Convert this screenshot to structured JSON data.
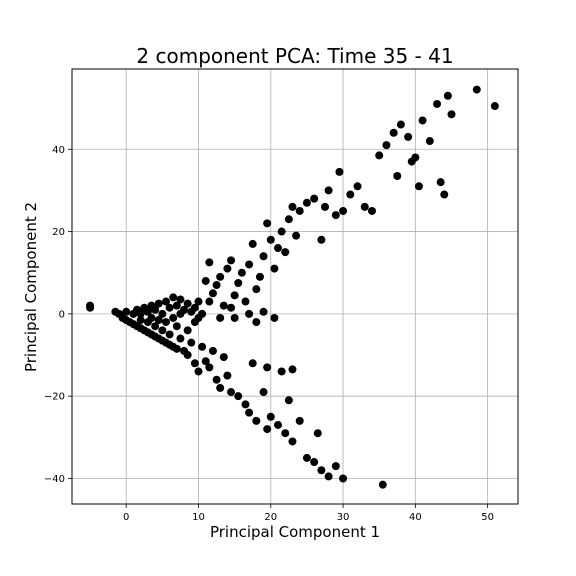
{
  "chart_data": {
    "type": "scatter",
    "title": "2 component PCA: Time 35 - 41",
    "xlabel": "Principal Component 1",
    "ylabel": "Principal Component 2",
    "xlim": [
      -7.5,
      54.2
    ],
    "ylim": [
      -46.2,
      59.5
    ],
    "xticks": [
      0,
      10,
      20,
      30,
      40,
      50
    ],
    "yticks": [
      -40,
      -20,
      0,
      20,
      40
    ],
    "xtick_labels": [
      "0",
      "10",
      "20",
      "30",
      "40",
      "50"
    ],
    "ytick_labels": [
      "−40",
      "−20",
      "0",
      "20",
      "40"
    ],
    "grid": true,
    "marker_color": "#000000",
    "series": [
      {
        "points": [
          [
            -5,
            2
          ],
          [
            -5,
            1.5
          ],
          [
            -1.5,
            0.5
          ],
          [
            -1,
            0
          ],
          [
            -0.5,
            -1
          ],
          [
            0,
            0.5
          ],
          [
            0,
            -1.5
          ],
          [
            0.5,
            -2
          ],
          [
            1,
            0
          ],
          [
            1,
            -2.5
          ],
          [
            1.5,
            1
          ],
          [
            1.5,
            -3
          ],
          [
            2,
            0
          ],
          [
            2,
            -1.5
          ],
          [
            2,
            -3.5
          ],
          [
            2.5,
            1.5
          ],
          [
            2.5,
            -4
          ],
          [
            3,
            0.5
          ],
          [
            3,
            -2
          ],
          [
            3,
            -4.5
          ],
          [
            3.5,
            2
          ],
          [
            3.5,
            -1
          ],
          [
            3.5,
            -5
          ],
          [
            4,
            1
          ],
          [
            4,
            -3
          ],
          [
            4,
            -5.5
          ],
          [
            4.5,
            2.5
          ],
          [
            4.5,
            -1.5
          ],
          [
            4.5,
            -6
          ],
          [
            5,
            0
          ],
          [
            5,
            -4
          ],
          [
            5,
            -6.5
          ],
          [
            5.5,
            3
          ],
          [
            5.5,
            -2
          ],
          [
            5.5,
            -7
          ],
          [
            6,
            1.5
          ],
          [
            6,
            -5
          ],
          [
            6,
            -7.5
          ],
          [
            6.5,
            4
          ],
          [
            6.5,
            -1
          ],
          [
            6.5,
            -8
          ],
          [
            7,
            2
          ],
          [
            7,
            -3
          ],
          [
            7,
            -8.5
          ],
          [
            7.5,
            3.5
          ],
          [
            7.5,
            0
          ],
          [
            7.5,
            -6
          ],
          [
            8,
            1
          ],
          [
            8,
            -9
          ],
          [
            8.5,
            2.5
          ],
          [
            8.5,
            -4
          ],
          [
            9,
            0.5
          ],
          [
            9,
            -7
          ],
          [
            9.5,
            1.5
          ],
          [
            9.5,
            -2
          ],
          [
            10,
            3
          ],
          [
            10,
            -1
          ],
          [
            10.5,
            0
          ],
          [
            11,
            8
          ],
          [
            11.5,
            12.5
          ],
          [
            12,
            5
          ],
          [
            12.5,
            7
          ],
          [
            13,
            9
          ],
          [
            13.5,
            2
          ],
          [
            14,
            11
          ],
          [
            14.5,
            13
          ],
          [
            15,
            4.5
          ],
          [
            15.5,
            7.5
          ],
          [
            16,
            10
          ],
          [
            16.5,
            3
          ],
          [
            17,
            12
          ],
          [
            17.5,
            17
          ],
          [
            18,
            6
          ],
          [
            18.5,
            9
          ],
          [
            19,
            14
          ],
          [
            19.5,
            22
          ],
          [
            20,
            18
          ],
          [
            20.5,
            11
          ],
          [
            21,
            16
          ],
          [
            21.5,
            20
          ],
          [
            22,
            15
          ],
          [
            22.5,
            23
          ],
          [
            23,
            26
          ],
          [
            23.5,
            19
          ],
          [
            24,
            25
          ],
          [
            25,
            27
          ],
          [
            26,
            28
          ],
          [
            27,
            18
          ],
          [
            27.5,
            26
          ],
          [
            28,
            30
          ],
          [
            29,
            24
          ],
          [
            30,
            25
          ],
          [
            29.5,
            34.5
          ],
          [
            31,
            29
          ],
          [
            32,
            31
          ],
          [
            33,
            26
          ],
          [
            34,
            25
          ],
          [
            35,
            38.5
          ],
          [
            36,
            41
          ],
          [
            37,
            44
          ],
          [
            37.5,
            33.5
          ],
          [
            38,
            46
          ],
          [
            39,
            43
          ],
          [
            39.5,
            37
          ],
          [
            40,
            38
          ],
          [
            40.5,
            31
          ],
          [
            41,
            47
          ],
          [
            42,
            42
          ],
          [
            43,
            51
          ],
          [
            43.5,
            32
          ],
          [
            44,
            29
          ],
          [
            44.5,
            53
          ],
          [
            45,
            48.5
          ],
          [
            48.5,
            54.5
          ],
          [
            51,
            50.5
          ],
          [
            11.5,
            3
          ],
          [
            13,
            -1
          ],
          [
            14.5,
            1.5
          ],
          [
            15,
            -1
          ],
          [
            17,
            0
          ],
          [
            18,
            -2
          ],
          [
            19,
            0.5
          ],
          [
            20.5,
            -1
          ],
          [
            8.5,
            -10
          ],
          [
            9.5,
            -12
          ],
          [
            10,
            -14
          ],
          [
            11,
            -11.5
          ],
          [
            11.5,
            -13
          ],
          [
            12.5,
            -16
          ],
          [
            13,
            -18
          ],
          [
            14,
            -15
          ],
          [
            14.5,
            -19
          ],
          [
            15.5,
            -20
          ],
          [
            16.5,
            -22
          ],
          [
            17,
            -24
          ],
          [
            18,
            -26
          ],
          [
            19,
            -19
          ],
          [
            19.5,
            -28
          ],
          [
            20,
            -25
          ],
          [
            21,
            -27
          ],
          [
            22,
            -29
          ],
          [
            22.5,
            -21
          ],
          [
            23,
            -31
          ],
          [
            24,
            -26
          ],
          [
            25,
            -35
          ],
          [
            26,
            -36
          ],
          [
            26.5,
            -29
          ],
          [
            27,
            -38
          ],
          [
            28,
            -39.5
          ],
          [
            29,
            -37
          ],
          [
            30,
            -40
          ],
          [
            35.5,
            -41.5
          ],
          [
            10.5,
            -8
          ],
          [
            12,
            -9
          ],
          [
            13.5,
            -10.5
          ],
          [
            17.5,
            -12
          ],
          [
            19.5,
            -13
          ],
          [
            21.5,
            -14
          ],
          [
            23,
            -13.5
          ]
        ]
      }
    ]
  }
}
